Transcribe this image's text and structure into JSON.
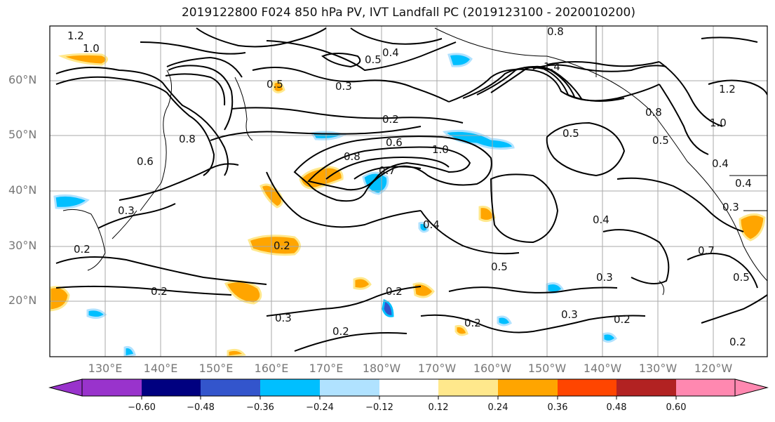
{
  "title": "2019122800 F024 850 hPa PV, IVT Landfall PC (2019123100 - 2020010200)",
  "lat_labels": [
    "60°N",
    "50°N",
    "40°N",
    "30°N",
    "20°N"
  ],
  "lon_labels": [
    "130°E",
    "140°E",
    "150°E",
    "160°E",
    "170°E",
    "180°W",
    "170°W",
    "160°W",
    "150°W",
    "140°W",
    "130°W",
    "120°W"
  ],
  "colorbar": {
    "ticks": [
      "−0.60",
      "−0.48",
      "−0.36",
      "−0.24",
      "−0.12",
      "0.12",
      "0.24",
      "0.36",
      "0.48",
      "0.60"
    ],
    "colors": [
      "#9933cc",
      "#000080",
      "#3355cc",
      "#00bfff",
      "#b0e2ff",
      "#ffffff",
      "#ffe88c",
      "#ffa500",
      "#ff4500",
      "#b22222",
      "#ff88b0"
    ]
  },
  "contour_labels": [
    "1.2",
    "1.0",
    "0.8",
    "0.6",
    "0.5",
    "0.4",
    "0.3",
    "0.2",
    "1.0",
    "0.8",
    "0.6",
    "0.5",
    "0.4",
    "0.3",
    "0.2",
    "0.7",
    "0.3",
    "0.2",
    "0.2",
    "0.2",
    "0.3",
    "0.2",
    "0.2",
    "0.4",
    "0.5",
    "0.3",
    "0.2",
    "0.4",
    "0.5",
    "0.8",
    "1.0",
    "0.5",
    "0.4",
    "0.3",
    "0.7",
    "0.5",
    "0.2",
    "1.2",
    "0.8",
    "1.4"
  ]
}
